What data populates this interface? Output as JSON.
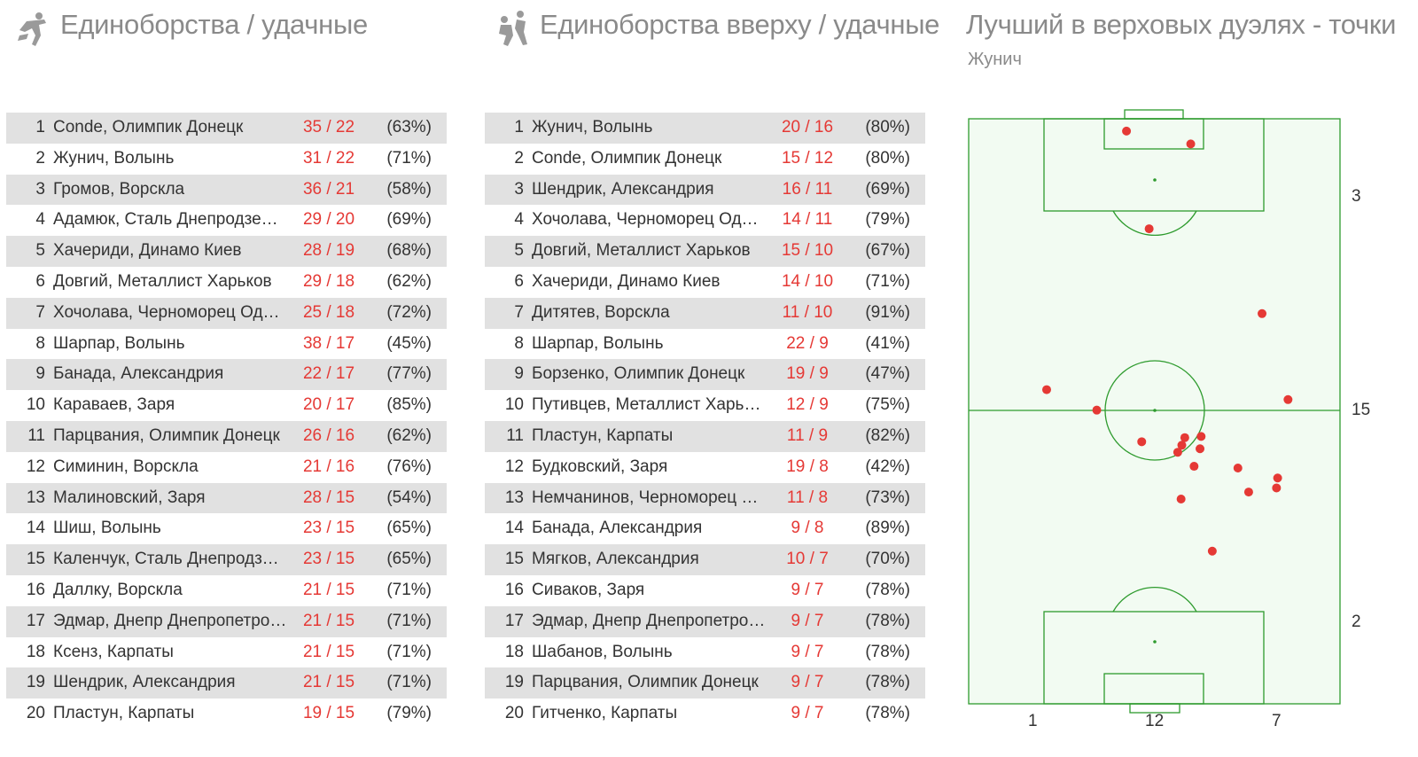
{
  "panel1": {
    "title": "Единоборства / удачные",
    "icon": "tackle-icon",
    "rows": [
      {
        "rank": "1",
        "name": "Conde, Олимпик Донецк",
        "score": "35 / 22",
        "pct": "(63%)"
      },
      {
        "rank": "2",
        "name": "Жунич, Волынь",
        "score": "31 / 22",
        "pct": "(71%)"
      },
      {
        "rank": "3",
        "name": "Громов, Ворскла",
        "score": "36 / 21",
        "pct": "(58%)"
      },
      {
        "rank": "4",
        "name": "Адамюк, Сталь Днепродзержинск",
        "score": "29 / 20",
        "pct": "(69%)"
      },
      {
        "rank": "5",
        "name": "Хачериди, Динамо Киев",
        "score": "28 / 19",
        "pct": "(68%)"
      },
      {
        "rank": "6",
        "name": "Довгий, Металлист Харьков",
        "score": "29 / 18",
        "pct": "(62%)"
      },
      {
        "rank": "7",
        "name": "Хочолава, Черноморец Одесса",
        "score": "25 / 18",
        "pct": "(72%)"
      },
      {
        "rank": "8",
        "name": "Шарпар, Волынь",
        "score": "38 / 17",
        "pct": "(45%)"
      },
      {
        "rank": "9",
        "name": "Банада, Александрия",
        "score": "22 / 17",
        "pct": "(77%)"
      },
      {
        "rank": "10",
        "name": "Караваев, Заря",
        "score": "20 / 17",
        "pct": "(85%)"
      },
      {
        "rank": "11",
        "name": "Парцвания, Олимпик Донецк",
        "score": "26 / 16",
        "pct": "(62%)"
      },
      {
        "rank": "12",
        "name": "Симинин, Ворскла",
        "score": "21 / 16",
        "pct": "(76%)"
      },
      {
        "rank": "13",
        "name": "Малиновский, Заря",
        "score": "28 / 15",
        "pct": "(54%)"
      },
      {
        "rank": "14",
        "name": "Шиш, Волынь",
        "score": "23 / 15",
        "pct": "(65%)"
      },
      {
        "rank": "15",
        "name": "Каленчук, Сталь Днепродзерж...",
        "score": "23 / 15",
        "pct": "(65%)"
      },
      {
        "rank": "16",
        "name": "Даллку, Ворскла",
        "score": "21 / 15",
        "pct": "(71%)"
      },
      {
        "rank": "17",
        "name": "Эдмар, Днепр Днепропетровск",
        "score": "21 / 15",
        "pct": "(71%)"
      },
      {
        "rank": "18",
        "name": "Ксенз, Карпаты",
        "score": "21 / 15",
        "pct": "(71%)"
      },
      {
        "rank": "19",
        "name": "Шендрик, Александрия",
        "score": "21 / 15",
        "pct": "(71%)"
      },
      {
        "rank": "20",
        "name": "Пластун, Карпаты",
        "score": "19 / 15",
        "pct": "(79%)"
      }
    ]
  },
  "panel2": {
    "title": "Единоборства вверху / удачные",
    "icon": "header-duel-icon",
    "rows": [
      {
        "rank": "1",
        "name": "Жунич, Волынь",
        "score": "20 / 16",
        "pct": "(80%)"
      },
      {
        "rank": "2",
        "name": "Conde, Олимпик Донецк",
        "score": "15 / 12",
        "pct": "(80%)"
      },
      {
        "rank": "3",
        "name": "Шендрик, Александрия",
        "score": "16 / 11",
        "pct": "(69%)"
      },
      {
        "rank": "4",
        "name": "Хочолава, Черноморец Одесса",
        "score": "14 / 11",
        "pct": "(79%)"
      },
      {
        "rank": "5",
        "name": "Довгий, Металлист Харьков",
        "score": "15 / 10",
        "pct": "(67%)"
      },
      {
        "rank": "6",
        "name": "Хачериди, Динамо Киев",
        "score": "14 / 10",
        "pct": "(71%)"
      },
      {
        "rank": "7",
        "name": "Дитятев, Ворскла",
        "score": "11 / 10",
        "pct": "(91%)"
      },
      {
        "rank": "8",
        "name": "Шарпар, Волынь",
        "score": "22 / 9",
        "pct": "(41%)"
      },
      {
        "rank": "9",
        "name": "Борзенко, Олимпик Донецк",
        "score": "19 / 9",
        "pct": "(47%)"
      },
      {
        "rank": "10",
        "name": "Путивцев, Металлист Харьков",
        "score": "12 / 9",
        "pct": "(75%)"
      },
      {
        "rank": "11",
        "name": "Пластун, Карпаты",
        "score": "11 / 9",
        "pct": "(82%)"
      },
      {
        "rank": "12",
        "name": "Будковский, Заря",
        "score": "19 / 8",
        "pct": "(42%)"
      },
      {
        "rank": "13",
        "name": "Немчанинов, Черноморец Одесса",
        "score": "11 / 8",
        "pct": "(73%)"
      },
      {
        "rank": "14",
        "name": "Банада, Александрия",
        "score": "9 / 8",
        "pct": "(89%)"
      },
      {
        "rank": "15",
        "name": "Мягков, Александрия",
        "score": "10 / 7",
        "pct": "(70%)"
      },
      {
        "rank": "16",
        "name": "Сиваков, Заря",
        "score": "9 / 7",
        "pct": "(78%)"
      },
      {
        "rank": "17",
        "name": "Эдмар, Днепр Днепропетровск",
        "score": "9 / 7",
        "pct": "(78%)"
      },
      {
        "rank": "18",
        "name": "Шабанов, Волынь",
        "score": "9 / 7",
        "pct": "(78%)"
      },
      {
        "rank": "19",
        "name": "Парцвания, Олимпик Донецк",
        "score": "9 / 7",
        "pct": "(78%)"
      },
      {
        "rank": "20",
        "name": "Гитченко, Карпаты",
        "score": "9 / 7",
        "pct": "(78%)"
      }
    ]
  },
  "panel3": {
    "title": "Лучший в верховых дуэлях - точки",
    "subtitle": "Жунич",
    "zone_counts": {
      "top": "3",
      "middle": "15",
      "bottom": "2"
    },
    "lane_counts": {
      "left": "1",
      "center": "12",
      "right": "7"
    }
  },
  "colors": {
    "accent_red": "#e53935",
    "pitch_line": "#2e9b2e",
    "pitch_fill": "#f2fbf2",
    "row_shade": "#e1e1e1"
  },
  "chart_data": {
    "type": "scatter",
    "title": "Лучший в верховых дуэлях - точки",
    "subtitle": "Жунич",
    "xlim": [
      0,
      100
    ],
    "ylim": [
      0,
      100
    ],
    "points": [
      [
        42.5,
        97.9
      ],
      [
        59.8,
        95.7
      ],
      [
        48.6,
        81.2
      ],
      [
        79.0,
        66.7
      ],
      [
        21.0,
        53.7
      ],
      [
        86.0,
        52.0
      ],
      [
        34.5,
        50.2
      ],
      [
        46.6,
        44.8
      ],
      [
        58.2,
        45.5
      ],
      [
        62.6,
        45.7
      ],
      [
        57.4,
        44.2
      ],
      [
        62.3,
        43.6
      ],
      [
        56.3,
        43.0
      ],
      [
        60.7,
        40.6
      ],
      [
        72.5,
        40.3
      ],
      [
        83.2,
        38.6
      ],
      [
        82.9,
        36.9
      ],
      [
        75.4,
        36.2
      ],
      [
        57.2,
        35.0
      ],
      [
        65.6,
        26.1
      ]
    ]
  }
}
